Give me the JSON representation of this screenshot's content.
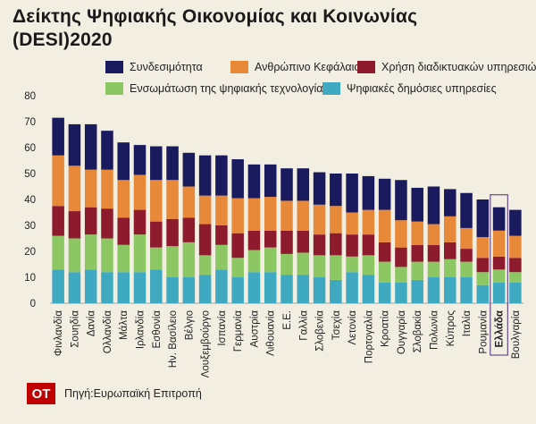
{
  "title": {
    "line1": "Δείκτης Ψηφιακής Οικονομίας και Κοινωνίας",
    "line2": "(DESI)2020"
  },
  "legend": [
    {
      "name": "Συνδεσιμότητα",
      "color": "#1a1a5e"
    },
    {
      "name": "Ανθρώπινο Κεφάλαιο",
      "color": "#e8893a"
    },
    {
      "name": "Χρήση διαδικτυακών υπηρεσιών",
      "color": "#8e1a2e"
    },
    {
      "name": "Ενσωμάτωση της ψηφιακής τεχνολογίας",
      "color": "#8cc763"
    },
    {
      "name": "Ψηφιακές δημόσιες υπηρεσίες",
      "color": "#3fa9c2"
    }
  ],
  "source": "Πηγή:Ευρωπαϊκή Επιτροπή",
  "logo": "OT",
  "chart_data": {
    "type": "bar",
    "stacked": true,
    "ylim": [
      0,
      80
    ],
    "yticks": [
      0,
      10,
      20,
      30,
      40,
      50,
      60,
      70,
      80
    ],
    "highlight": "Ελλάδα",
    "categories": [
      "Φινλανδία",
      "Σουηδία",
      "Δανία",
      "Ολλανδία",
      "Μάλτα",
      "Ιρλανδία",
      "Εσθονία",
      "Ην. Βασίλειο",
      "Βέλγιο",
      "Λουξεμβούργο",
      "Ισπανία",
      "Γερμανία",
      "Αυστρία",
      "Λιθουανία",
      "Ε.Ε.",
      "Γαλλία",
      "Σλοβενία",
      "Τσεχία",
      "Λετονία",
      "Πορτογαλία",
      "Κροατία",
      "Ουγγαρία",
      "Σλοβακία",
      "Πολωνία",
      "Κύπρος",
      "Ιταλία",
      "Ρουμανία",
      "Ελλάδα",
      "Βουλγαρία"
    ],
    "series": [
      {
        "name": "Ψηφιακές δημόσιες υπηρεσίες",
        "values": [
          13,
          12,
          13,
          12,
          12,
          12,
          13,
          10,
          10,
          11,
          13,
          10,
          12,
          12,
          11,
          11,
          10,
          9,
          12,
          11,
          8,
          8,
          9,
          10,
          10,
          10,
          7,
          8,
          8
        ]
      },
      {
        "name": "Ενσωμάτωση της ψηφιακής τεχνολογίας",
        "values": [
          13,
          13,
          13.5,
          13,
          10.5,
          14.5,
          8.5,
          12,
          13.5,
          7.5,
          9.5,
          7.5,
          8.5,
          9.5,
          8,
          8.5,
          8.5,
          9.5,
          6,
          7.5,
          8,
          6,
          7,
          6,
          7,
          6,
          5,
          5,
          4
        ]
      },
      {
        "name": "Χρήση διαδικτυακών υπηρεσιών",
        "values": [
          11.5,
          10.5,
          10.5,
          11.5,
          10.5,
          9.5,
          10,
          10.5,
          9.5,
          12,
          7.5,
          9.5,
          7.5,
          6.5,
          9,
          8.5,
          8,
          8.5,
          8.5,
          8,
          7.5,
          7.5,
          6.5,
          6.5,
          6.5,
          5,
          5.5,
          5,
          5.5
        ]
      },
      {
        "name": "Ανθρώπινο Κεφάλαιο",
        "values": [
          19.5,
          17.5,
          14.5,
          15,
          14.5,
          13.5,
          16,
          15,
          12,
          11,
          11.5,
          13.5,
          12.5,
          13,
          11.5,
          11.5,
          11.5,
          10.5,
          8.5,
          9.5,
          12.5,
          10.5,
          9,
          8,
          10,
          8,
          8,
          10,
          8.5
        ]
      },
      {
        "name": "Συνδεσιμότητα",
        "values": [
          14.5,
          16,
          17.5,
          15,
          14.5,
          11.5,
          13,
          13,
          13,
          15.5,
          15.5,
          15,
          13,
          12.5,
          12.5,
          12.5,
          12.5,
          12.5,
          15,
          13,
          12,
          15.5,
          13,
          14.5,
          10.5,
          13.5,
          14.5,
          9,
          10
        ]
      }
    ]
  }
}
